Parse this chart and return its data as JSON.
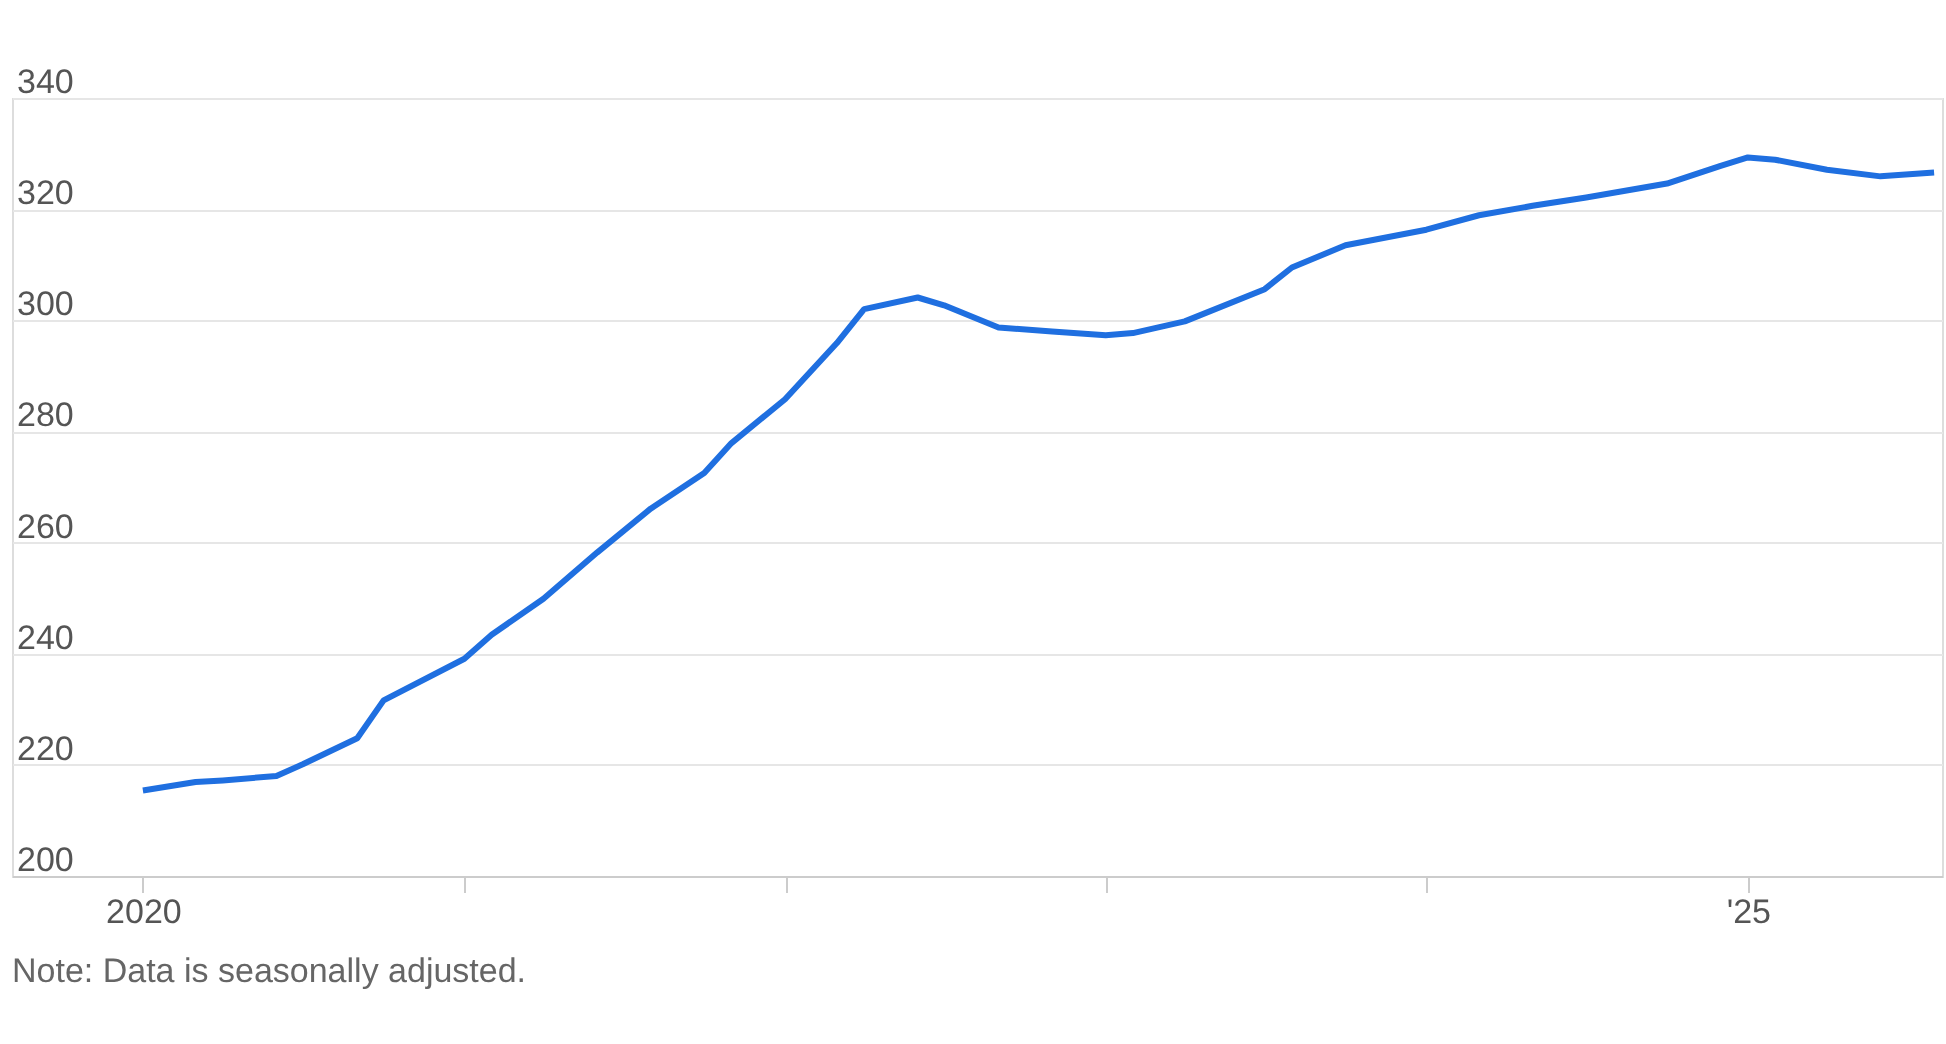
{
  "chart_data": {
    "type": "line",
    "annotations": [
      "Note: Data is seasonally adjusted."
    ],
    "x": [
      "2020-01",
      "2020-03",
      "2020-04",
      "2020-06",
      "2020-07",
      "2020-09",
      "2020-10",
      "2021-01",
      "2021-02",
      "2021-04",
      "2021-06",
      "2021-08",
      "2021-10",
      "2021-11",
      "2022-01",
      "2022-03",
      "2022-04",
      "2022-06",
      "2022-07",
      "2022-09",
      "2022-11",
      "2023-01",
      "2023-02",
      "2023-04",
      "2023-07",
      "2023-08",
      "2023-10",
      "2024-01",
      "2024-03",
      "2024-05",
      "2024-07",
      "2024-10",
      "2024-12",
      "2025-01",
      "2025-02",
      "2025-04",
      "2025-06",
      "2025-08"
    ],
    "series": [
      {
        "color": "#1f6fe0",
        "values": [
          215.4,
          216.9,
          217.2,
          218,
          220.1,
          224.8,
          231.6,
          239.1,
          243.4,
          249.9,
          258.2,
          266.1,
          272.5,
          277.9,
          285.8,
          295.9,
          302,
          304.1,
          302.7,
          298.7,
          298,
          297.3,
          297.7,
          299.8,
          305.6,
          309.5,
          313.5,
          316.3,
          318.9,
          320.6,
          322.1,
          324.6,
          327.8,
          329.3,
          328.9,
          327.1,
          325.9,
          326.6
        ]
      }
    ],
    "xlim": [
      "2019-08-05",
      "2025-08-10"
    ],
    "xticks": [
      {
        "value": "2020",
        "label": "2020"
      },
      {
        "value": "2021",
        "label": null
      },
      {
        "value": "2022",
        "label": null
      },
      {
        "value": "2023",
        "label": null
      },
      {
        "value": "2024",
        "label": null
      },
      {
        "value": "2025",
        "label": "'25"
      }
    ],
    "ylim": [
      200,
      340
    ],
    "yticks": [
      200,
      220,
      240,
      260,
      280,
      300,
      320,
      340
    ],
    "grid": "y",
    "marker": "none",
    "line_style": "solid"
  }
}
